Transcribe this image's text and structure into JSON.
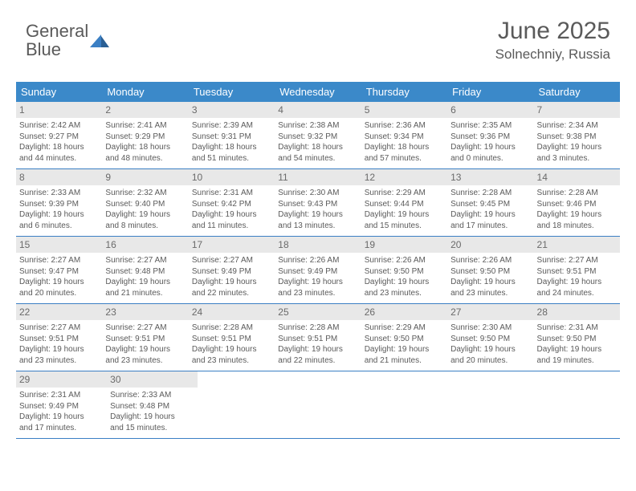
{
  "logo": {
    "text1": "General",
    "text2": "Blue"
  },
  "header": {
    "month": "June 2025",
    "location": "Solnechniy, Russia"
  },
  "colors": {
    "header_bar": "#3b89c9",
    "row_border": "#3b7fc4",
    "daynum_bg": "#e8e8e8",
    "text_main": "#5a5a5a",
    "white": "#ffffff"
  },
  "weekdays": [
    "Sunday",
    "Monday",
    "Tuesday",
    "Wednesday",
    "Thursday",
    "Friday",
    "Saturday"
  ],
  "days": [
    {
      "n": "1",
      "sr": "2:42 AM",
      "ss": "9:27 PM",
      "dl1": "18 hours",
      "dl2": "44 minutes."
    },
    {
      "n": "2",
      "sr": "2:41 AM",
      "ss": "9:29 PM",
      "dl1": "18 hours",
      "dl2": "48 minutes."
    },
    {
      "n": "3",
      "sr": "2:39 AM",
      "ss": "9:31 PM",
      "dl1": "18 hours",
      "dl2": "51 minutes."
    },
    {
      "n": "4",
      "sr": "2:38 AM",
      "ss": "9:32 PM",
      "dl1": "18 hours",
      "dl2": "54 minutes."
    },
    {
      "n": "5",
      "sr": "2:36 AM",
      "ss": "9:34 PM",
      "dl1": "18 hours",
      "dl2": "57 minutes."
    },
    {
      "n": "6",
      "sr": "2:35 AM",
      "ss": "9:36 PM",
      "dl1": "19 hours",
      "dl2": "0 minutes."
    },
    {
      "n": "7",
      "sr": "2:34 AM",
      "ss": "9:38 PM",
      "dl1": "19 hours",
      "dl2": "3 minutes."
    },
    {
      "n": "8",
      "sr": "2:33 AM",
      "ss": "9:39 PM",
      "dl1": "19 hours",
      "dl2": "6 minutes."
    },
    {
      "n": "9",
      "sr": "2:32 AM",
      "ss": "9:40 PM",
      "dl1": "19 hours",
      "dl2": "8 minutes."
    },
    {
      "n": "10",
      "sr": "2:31 AM",
      "ss": "9:42 PM",
      "dl1": "19 hours",
      "dl2": "11 minutes."
    },
    {
      "n": "11",
      "sr": "2:30 AM",
      "ss": "9:43 PM",
      "dl1": "19 hours",
      "dl2": "13 minutes."
    },
    {
      "n": "12",
      "sr": "2:29 AM",
      "ss": "9:44 PM",
      "dl1": "19 hours",
      "dl2": "15 minutes."
    },
    {
      "n": "13",
      "sr": "2:28 AM",
      "ss": "9:45 PM",
      "dl1": "19 hours",
      "dl2": "17 minutes."
    },
    {
      "n": "14",
      "sr": "2:28 AM",
      "ss": "9:46 PM",
      "dl1": "19 hours",
      "dl2": "18 minutes."
    },
    {
      "n": "15",
      "sr": "2:27 AM",
      "ss": "9:47 PM",
      "dl1": "19 hours",
      "dl2": "20 minutes."
    },
    {
      "n": "16",
      "sr": "2:27 AM",
      "ss": "9:48 PM",
      "dl1": "19 hours",
      "dl2": "21 minutes."
    },
    {
      "n": "17",
      "sr": "2:27 AM",
      "ss": "9:49 PM",
      "dl1": "19 hours",
      "dl2": "22 minutes."
    },
    {
      "n": "18",
      "sr": "2:26 AM",
      "ss": "9:49 PM",
      "dl1": "19 hours",
      "dl2": "23 minutes."
    },
    {
      "n": "19",
      "sr": "2:26 AM",
      "ss": "9:50 PM",
      "dl1": "19 hours",
      "dl2": "23 minutes."
    },
    {
      "n": "20",
      "sr": "2:26 AM",
      "ss": "9:50 PM",
      "dl1": "19 hours",
      "dl2": "23 minutes."
    },
    {
      "n": "21",
      "sr": "2:27 AM",
      "ss": "9:51 PM",
      "dl1": "19 hours",
      "dl2": "24 minutes."
    },
    {
      "n": "22",
      "sr": "2:27 AM",
      "ss": "9:51 PM",
      "dl1": "19 hours",
      "dl2": "23 minutes."
    },
    {
      "n": "23",
      "sr": "2:27 AM",
      "ss": "9:51 PM",
      "dl1": "19 hours",
      "dl2": "23 minutes."
    },
    {
      "n": "24",
      "sr": "2:28 AM",
      "ss": "9:51 PM",
      "dl1": "19 hours",
      "dl2": "23 minutes."
    },
    {
      "n": "25",
      "sr": "2:28 AM",
      "ss": "9:51 PM",
      "dl1": "19 hours",
      "dl2": "22 minutes."
    },
    {
      "n": "26",
      "sr": "2:29 AM",
      "ss": "9:50 PM",
      "dl1": "19 hours",
      "dl2": "21 minutes."
    },
    {
      "n": "27",
      "sr": "2:30 AM",
      "ss": "9:50 PM",
      "dl1": "19 hours",
      "dl2": "20 minutes."
    },
    {
      "n": "28",
      "sr": "2:31 AM",
      "ss": "9:50 PM",
      "dl1": "19 hours",
      "dl2": "19 minutes."
    },
    {
      "n": "29",
      "sr": "2:31 AM",
      "ss": "9:49 PM",
      "dl1": "19 hours",
      "dl2": "17 minutes."
    },
    {
      "n": "30",
      "sr": "2:33 AM",
      "ss": "9:48 PM",
      "dl1": "19 hours",
      "dl2": "15 minutes."
    }
  ],
  "labels": {
    "sunrise_prefix": "Sunrise: ",
    "sunset_prefix": "Sunset: ",
    "daylight_prefix": "Daylight: ",
    "and_prefix": "and "
  }
}
